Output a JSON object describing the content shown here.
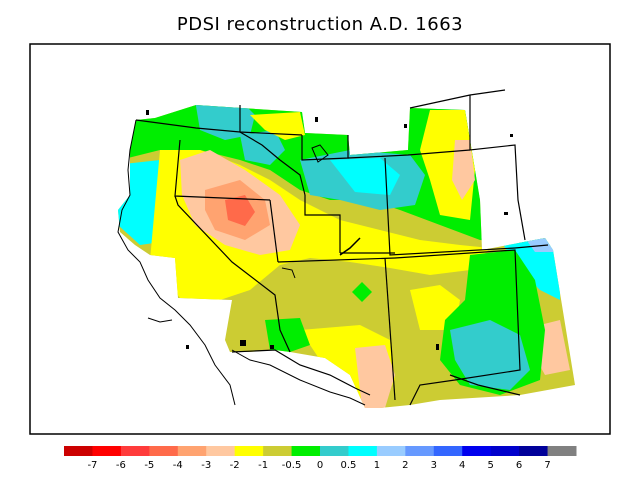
{
  "title": "PDSI reconstruction A.D. 1663",
  "legend": {
    "colors": [
      "#cc0000",
      "#ff0000",
      "#ff3b3b",
      "#ff6a4a",
      "#ffa370",
      "#ffc8a0",
      "#ffff00",
      "#cccc33",
      "#00ee00",
      "#33cccc",
      "#00ffff",
      "#99ccff",
      "#6699ff",
      "#3366ff",
      "#0000ee",
      "#0000cc",
      "#00009a",
      "#808080"
    ],
    "labels": [
      "-7",
      "-6",
      "-5",
      "-4",
      "-3",
      "-2",
      "-1",
      "-0.5",
      "0",
      "0.5",
      "1",
      "2",
      "3",
      "4",
      "5",
      "6",
      "7"
    ]
  },
  "palette": {
    "green": "#00ee00",
    "teal": "#33cccc",
    "cyan": "#00ffff",
    "lightblue": "#99ccff",
    "olive": "#cccc33",
    "yellow": "#ffff00",
    "peach": "#ffc8a0",
    "orange": "#ffa370",
    "red": "#ff6a4a"
  }
}
